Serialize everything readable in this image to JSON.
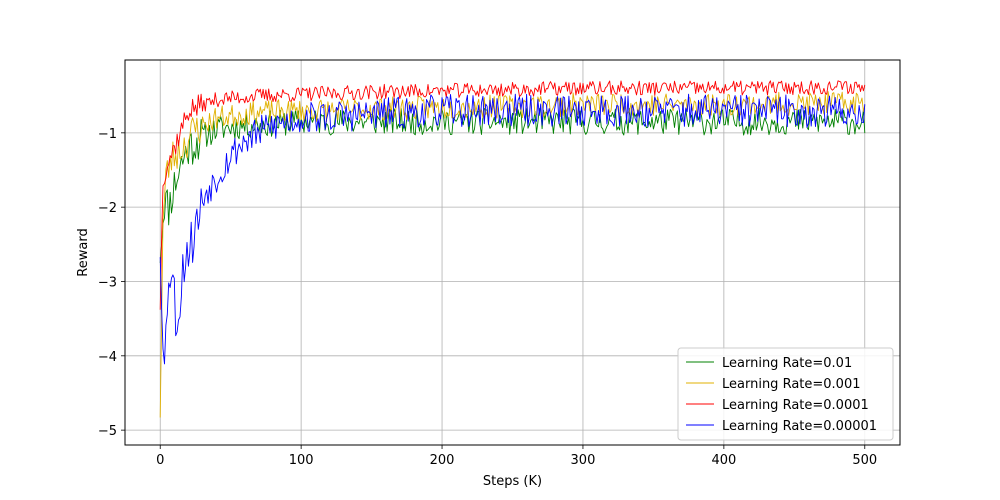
{
  "chart_data": {
    "type": "line",
    "title": "",
    "xlabel": "Steps (K)",
    "ylabel": "Reward",
    "xlim": [
      -25,
      525
    ],
    "ylim": [
      -5.2,
      -0.02
    ],
    "xticks": [
      0,
      100,
      200,
      300,
      400,
      500
    ],
    "yticks": [
      -5,
      -4,
      -3,
      -2,
      -1
    ],
    "xtick_labels": [
      "0",
      "100",
      "200",
      "300",
      "400",
      "500"
    ],
    "ytick_labels": [
      "−5",
      "−4",
      "−3",
      "−2",
      "−1"
    ],
    "grid": true,
    "legend_position": "lower-right",
    "x_step": 1,
    "series": [
      {
        "name": "Learning Rate=0.01",
        "color": "#008000",
        "keypoints": [
          [
            0,
            -2.6
          ],
          [
            3,
            -1.9
          ],
          [
            6,
            -2.0
          ],
          [
            10,
            -1.7
          ],
          [
            15,
            -1.4
          ],
          [
            20,
            -1.2
          ],
          [
            30,
            -1.05
          ],
          [
            40,
            -0.95
          ],
          [
            60,
            -0.9
          ],
          [
            100,
            -0.85
          ],
          [
            200,
            -0.85
          ],
          [
            300,
            -0.85
          ],
          [
            400,
            -0.85
          ],
          [
            500,
            -0.85
          ]
        ],
        "noise": 0.18,
        "seed": 11
      },
      {
        "name": "Learning Rate=0.001",
        "color": "#e0b000",
        "keypoints": [
          [
            0,
            -4.7
          ],
          [
            2,
            -2.2
          ],
          [
            4,
            -1.6
          ],
          [
            8,
            -1.35
          ],
          [
            15,
            -1.2
          ],
          [
            25,
            -0.95
          ],
          [
            40,
            -0.8
          ],
          [
            70,
            -0.72
          ],
          [
            150,
            -0.68
          ],
          [
            300,
            -0.62
          ],
          [
            400,
            -0.62
          ],
          [
            500,
            -0.6
          ]
        ],
        "noise": 0.16,
        "seed": 23
      },
      {
        "name": "Learning Rate=0.0001",
        "color": "#ff0000",
        "keypoints": [
          [
            0,
            -3.3
          ],
          [
            2,
            -1.6
          ],
          [
            5,
            -1.4
          ],
          [
            10,
            -1.2
          ],
          [
            20,
            -0.7
          ],
          [
            40,
            -0.55
          ],
          [
            70,
            -0.5
          ],
          [
            150,
            -0.45
          ],
          [
            300,
            -0.4
          ],
          [
            400,
            -0.4
          ],
          [
            500,
            -0.38
          ]
        ],
        "noise": 0.1,
        "seed": 37
      },
      {
        "name": "Learning Rate=0.00001",
        "color": "#0000ff",
        "keypoints": [
          [
            0,
            -2.5
          ],
          [
            3,
            -4.2
          ],
          [
            6,
            -2.8
          ],
          [
            9,
            -3.0
          ],
          [
            12,
            -3.6
          ],
          [
            15,
            -3.0
          ],
          [
            18,
            -2.6
          ],
          [
            22,
            -2.5
          ],
          [
            26,
            -2.2
          ],
          [
            32,
            -1.8
          ],
          [
            40,
            -1.6
          ],
          [
            50,
            -1.3
          ],
          [
            60,
            -1.1
          ],
          [
            80,
            -0.9
          ],
          [
            100,
            -0.8
          ],
          [
            200,
            -0.7
          ],
          [
            300,
            -0.7
          ],
          [
            400,
            -0.7
          ],
          [
            500,
            -0.72
          ]
        ],
        "noise": 0.22,
        "seed": 53
      }
    ]
  }
}
